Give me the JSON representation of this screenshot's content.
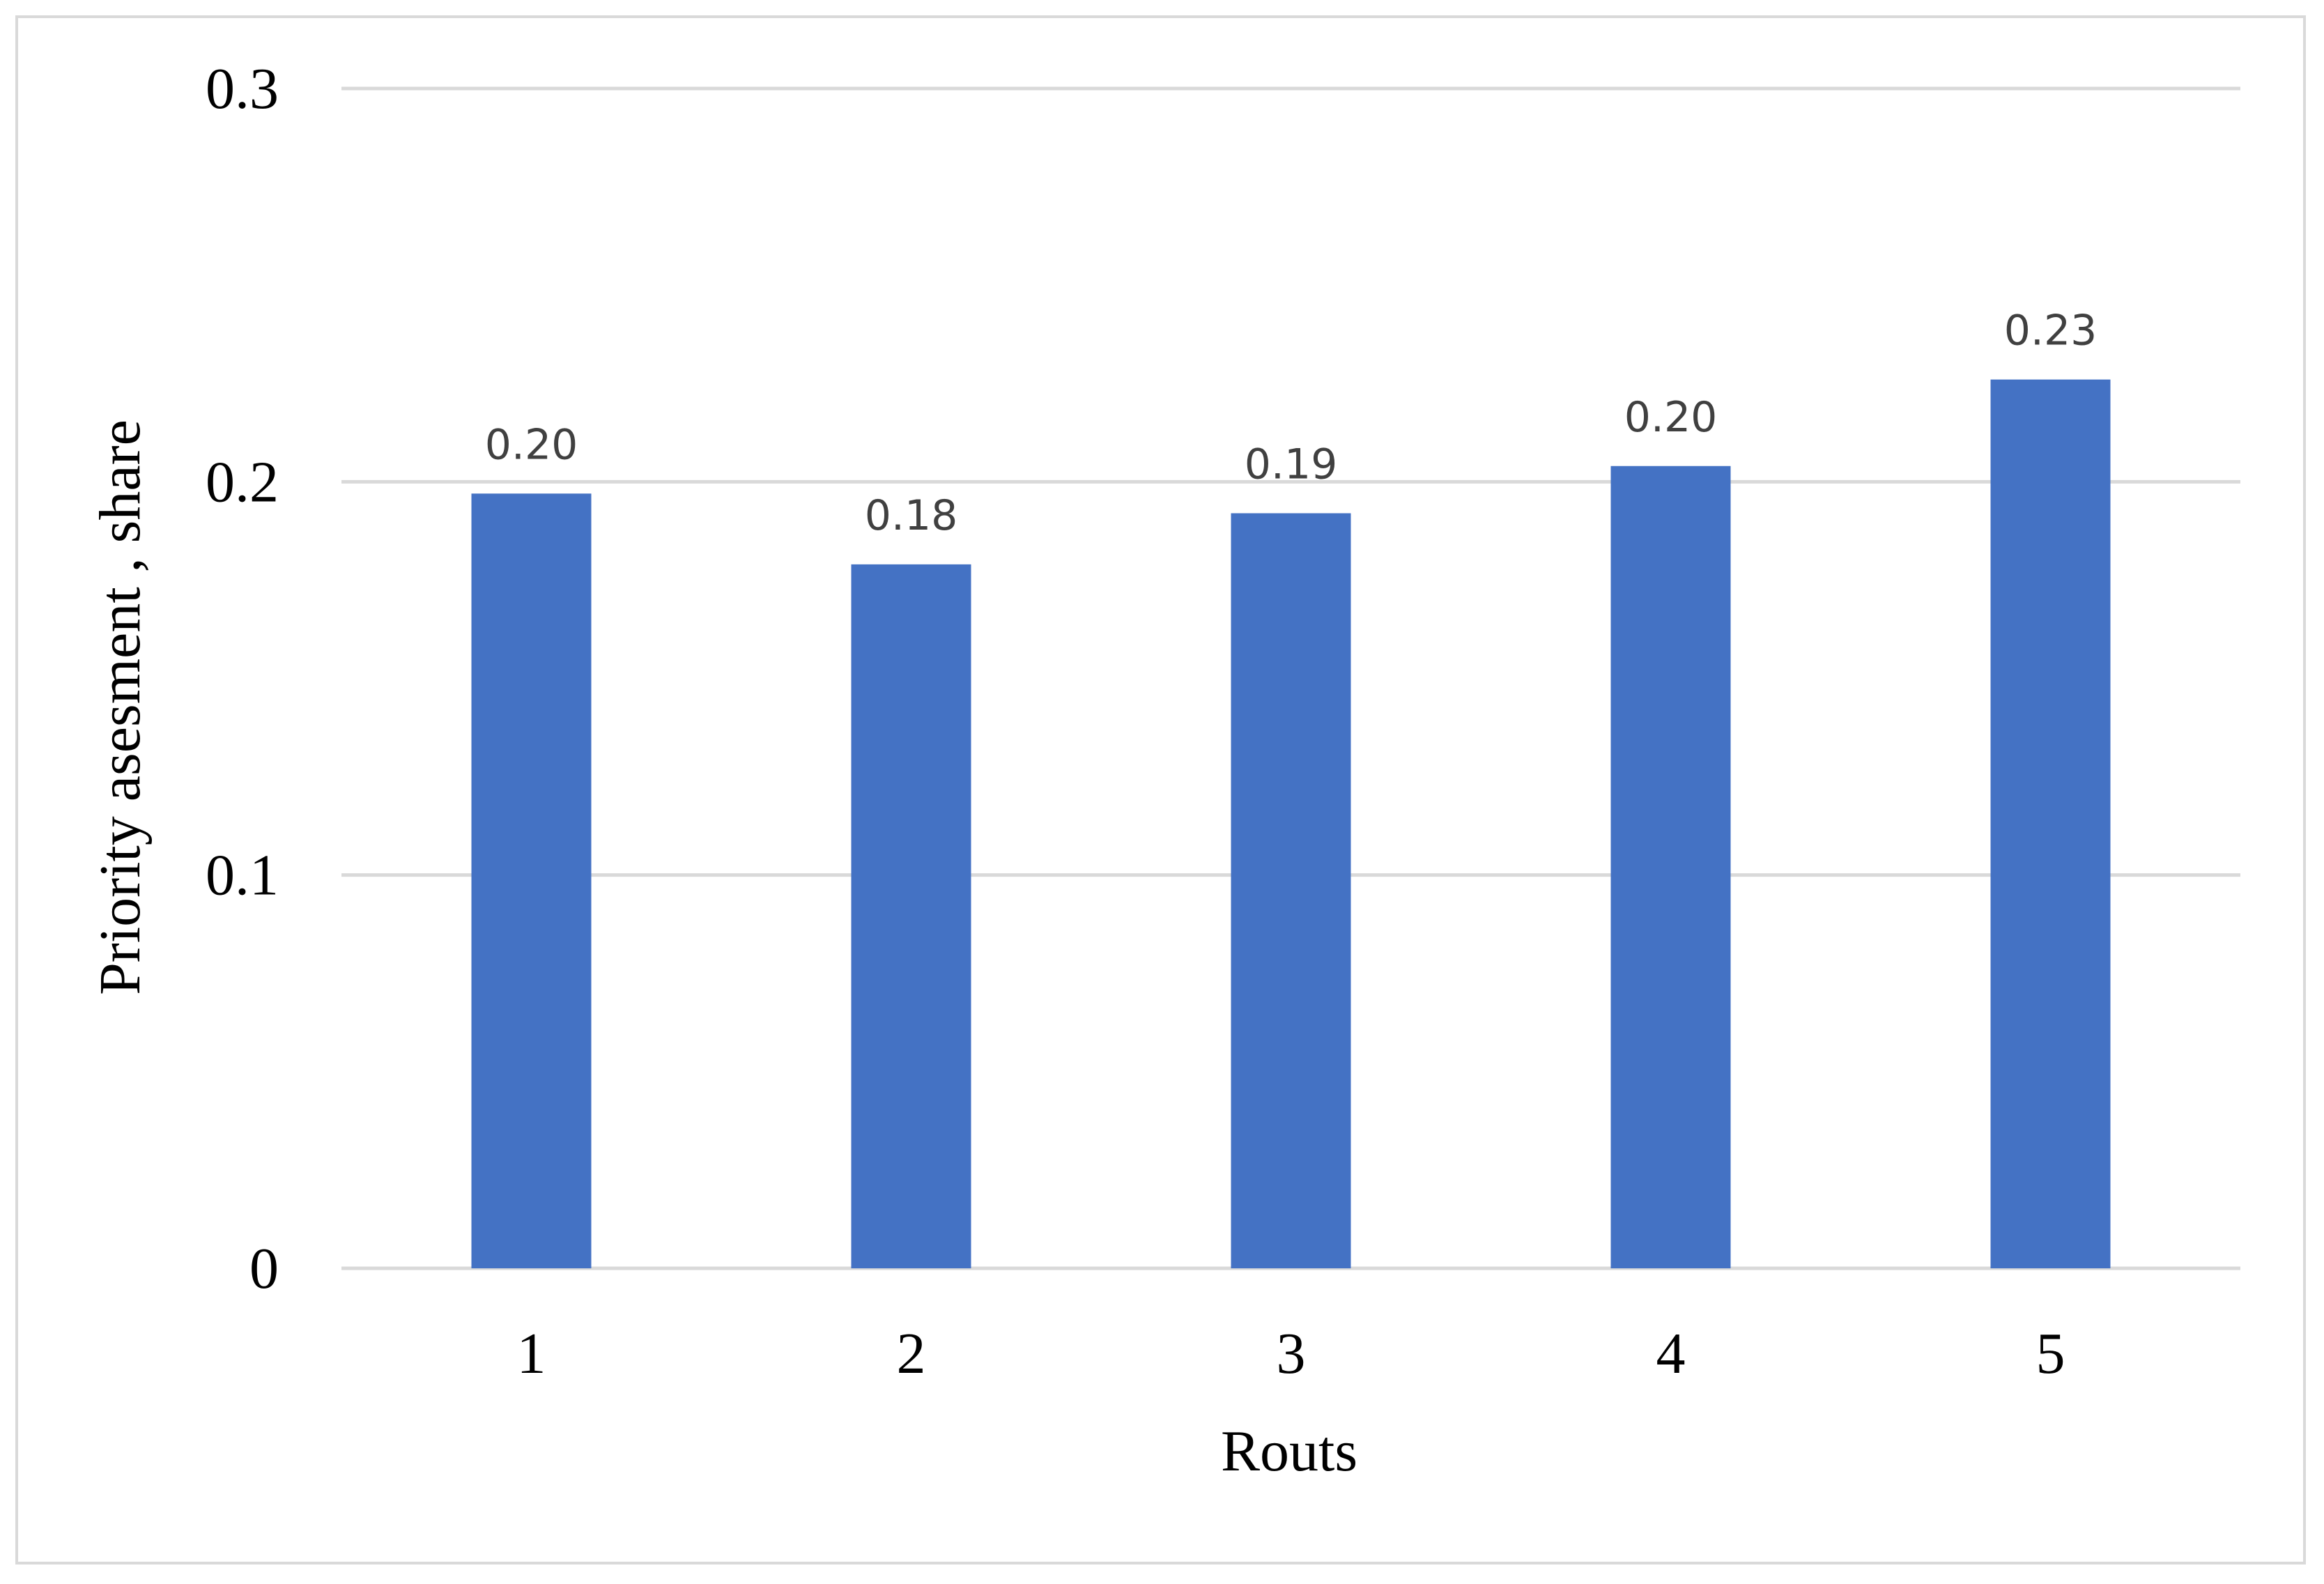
{
  "chart_data": {
    "type": "bar",
    "categories": [
      "1",
      "2",
      "3",
      "4",
      "5"
    ],
    "values": [
      0.197,
      0.179,
      0.192,
      0.204,
      0.226
    ],
    "data_labels": [
      "0.20",
      "0.18",
      "0.19",
      "0.20",
      "0.23"
    ],
    "xlabel": "Routs",
    "ylabel": "Priority asesment , share",
    "ylim": [
      0,
      0.3
    ],
    "yticks": [
      0,
      0.1,
      0.2,
      0.3
    ],
    "ytick_labels": [
      "0",
      "0.1",
      "0.2",
      "0.3"
    ],
    "grid": true,
    "legend": "none",
    "colors": {
      "bar": "#4472c4",
      "grid": "#d9d9d9",
      "data_label": "#404040"
    }
  }
}
